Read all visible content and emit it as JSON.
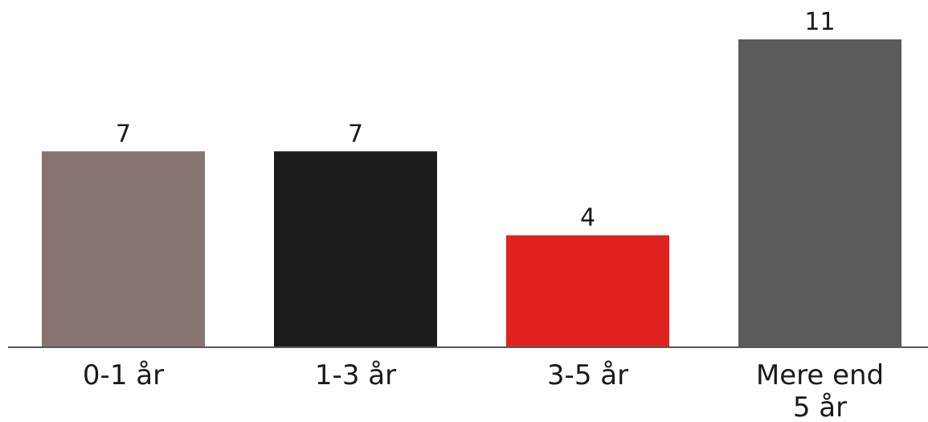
{
  "chart_data": {
    "type": "bar",
    "title": "",
    "xlabel": "",
    "ylabel": "",
    "ylim": [
      0,
      11
    ],
    "grid": false,
    "categories": [
      [
        "0-1 år"
      ],
      [
        "1-3 år"
      ],
      [
        "3-5 år"
      ],
      [
        "Mere end",
        "5 år"
      ]
    ],
    "values": [
      7,
      7,
      4,
      11
    ],
    "colors": [
      "#877370",
      "#1b1b1b",
      "#e1211e",
      "#5b5b5b"
    ]
  }
}
